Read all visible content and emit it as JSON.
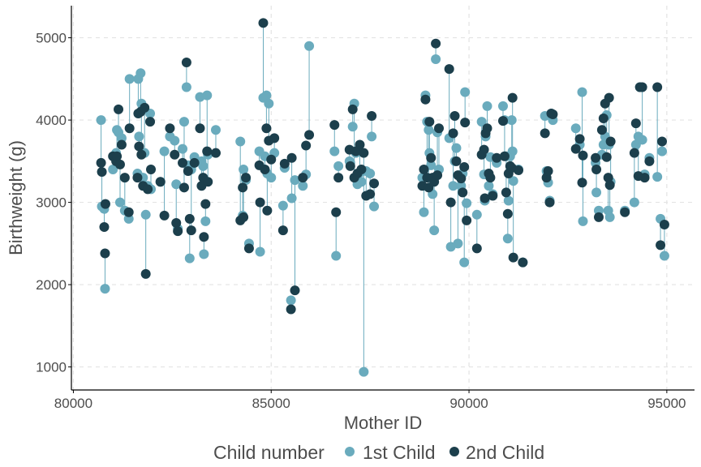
{
  "chart_data": {
    "type": "scatter",
    "xlabel": "Mother ID",
    "ylabel": "Birthweight (g)",
    "xlim": [
      79950,
      95700
    ],
    "ylim": [
      720,
      5390
    ],
    "x_ticks": [
      "80000",
      "85000",
      "90000",
      "95000"
    ],
    "x_tick_values": [
      80000,
      85000,
      90000,
      95000
    ],
    "y_ticks": [
      "1000",
      "2000",
      "3000",
      "4000",
      "5000"
    ],
    "y_tick_values": [
      1000,
      2000,
      3000,
      4000,
      5000
    ],
    "grid": true,
    "legend": {
      "position": "bottom",
      "title": "Child number",
      "entries": [
        "1st Child",
        "2nd Child"
      ]
    },
    "colors": {
      "first": "#6aabbd",
      "second": "#1c3f4c",
      "line": "#6aabbd"
    },
    "pairs": [
      {
        "x": 80700,
        "first": 4000,
        "second": 3480
      },
      {
        "x": 80720,
        "first": 2950,
        "second": 3370
      },
      {
        "x": 80780,
        "first": 2920,
        "second": 2700
      },
      {
        "x": 80800,
        "first": 1950,
        "second": 2380
      },
      {
        "x": 80810,
        "first": 2980,
        "second": 2980
      },
      {
        "x": 81000,
        "first": 3400,
        "second": 3560
      },
      {
        "x": 81080,
        "first": 3600,
        "second": 3500
      },
      {
        "x": 81100,
        "first": 3880,
        "second": 3560
      },
      {
        "x": 81140,
        "first": 3850,
        "second": 4130
      },
      {
        "x": 81180,
        "first": 3000,
        "second": 3460
      },
      {
        "x": 81220,
        "first": 3780,
        "second": 3700
      },
      {
        "x": 81300,
        "first": 2900,
        "second": 3300
      },
      {
        "x": 81400,
        "first": 2800,
        "second": 2880
      },
      {
        "x": 81420,
        "first": 4500,
        "second": 3900
      },
      {
        "x": 81620,
        "first": 3350,
        "second": 3300
      },
      {
        "x": 81640,
        "first": 4500,
        "second": 4080
      },
      {
        "x": 81660,
        "first": 3800,
        "second": 3680
      },
      {
        "x": 81700,
        "first": 4570,
        "second": 4100
      },
      {
        "x": 81720,
        "first": 4200,
        "second": 3580
      },
      {
        "x": 81760,
        "first": 3300,
        "second": 3200
      },
      {
        "x": 81800,
        "first": 3600,
        "second": 4150
      },
      {
        "x": 81830,
        "first": 2850,
        "second": 2130
      },
      {
        "x": 81880,
        "first": 3200,
        "second": 3160
      },
      {
        "x": 81940,
        "first": 4080,
        "second": 3980
      },
      {
        "x": 81960,
        "first": 3160,
        "second": 3400
      },
      {
        "x": 82200,
        "first": 3250,
        "second": 3250
      },
      {
        "x": 82300,
        "first": 3620,
        "second": 2840
      },
      {
        "x": 82440,
        "first": 3800,
        "second": 3900
      },
      {
        "x": 82560,
        "first": 3750,
        "second": 3580
      },
      {
        "x": 82600,
        "first": 3220,
        "second": 2750
      },
      {
        "x": 82640,
        "first": 2680,
        "second": 2650
      },
      {
        "x": 82760,
        "first": 3650,
        "second": 3480
      },
      {
        "x": 82800,
        "first": 3980,
        "second": 3180
      },
      {
        "x": 82860,
        "first": 4400,
        "second": 4700
      },
      {
        "x": 82900,
        "first": 3450,
        "second": 3380
      },
      {
        "x": 82940,
        "first": 2320,
        "second": 2800
      },
      {
        "x": 82980,
        "first": 3400,
        "second": 2660
      },
      {
        "x": 83060,
        "first": 3550,
        "second": 3480
      },
      {
        "x": 83200,
        "first": 4280,
        "second": 3900
      },
      {
        "x": 83240,
        "first": 3500,
        "second": 3200
      },
      {
        "x": 83280,
        "first": 3440,
        "second": 3300
      },
      {
        "x": 83300,
        "first": 2370,
        "second": 2580
      },
      {
        "x": 83340,
        "first": 2770,
        "second": 2980
      },
      {
        "x": 83380,
        "first": 4300,
        "second": 3620
      },
      {
        "x": 83400,
        "first": 3580,
        "second": 3250
      },
      {
        "x": 83600,
        "first": 3880,
        "second": 3600
      },
      {
        "x": 84220,
        "first": 3740,
        "second": 2780
      },
      {
        "x": 84280,
        "first": 2840,
        "second": 3180
      },
      {
        "x": 84300,
        "first": 3400,
        "second": 2820
      },
      {
        "x": 84360,
        "first": 3270,
        "second": 3300
      },
      {
        "x": 84440,
        "first": 2500,
        "second": 2440
      },
      {
        "x": 84700,
        "first": 3620,
        "second": 3450
      },
      {
        "x": 84720,
        "first": 2400,
        "second": 3000
      },
      {
        "x": 84800,
        "first": 4270,
        "second": 5180
      },
      {
        "x": 84840,
        "first": 3560,
        "second": 3400
      },
      {
        "x": 84880,
        "first": 4300,
        "second": 3900
      },
      {
        "x": 84900,
        "first": 3350,
        "second": 2900
      },
      {
        "x": 84940,
        "first": 4200,
        "second": 3750
      },
      {
        "x": 85000,
        "first": 3300,
        "second": 3520
      },
      {
        "x": 85080,
        "first": 3600,
        "second": 3780
      },
      {
        "x": 85300,
        "first": 2960,
        "second": 2660
      },
      {
        "x": 85340,
        "first": 3420,
        "second": 3470
      },
      {
        "x": 85500,
        "first": 1810,
        "second": 1700
      },
      {
        "x": 85520,
        "first": 3050,
        "second": 3540
      },
      {
        "x": 85600,
        "first": 3270,
        "second": 1930
      },
      {
        "x": 85800,
        "first": 3200,
        "second": 3300
      },
      {
        "x": 85880,
        "first": 3340,
        "second": 3690
      },
      {
        "x": 85960,
        "first": 4900,
        "second": 3820
      },
      {
        "x": 86600,
        "first": 3620,
        "second": 3940
      },
      {
        "x": 86640,
        "first": 2350,
        "second": 2880
      },
      {
        "x": 86700,
        "first": 3440,
        "second": 3300
      },
      {
        "x": 86980,
        "first": 3500,
        "second": 3640
      },
      {
        "x": 87000,
        "first": 3480,
        "second": 3440
      },
      {
        "x": 87060,
        "first": 3920,
        "second": 4130
      },
      {
        "x": 87100,
        "first": 4200,
        "second": 3300
      },
      {
        "x": 87140,
        "first": 3600,
        "second": 3620
      },
      {
        "x": 87180,
        "first": 3220,
        "second": 3350
      },
      {
        "x": 87240,
        "first": 3360,
        "second": 3700
      },
      {
        "x": 87280,
        "first": 3250,
        "second": 3400
      },
      {
        "x": 87340,
        "first": 940,
        "second": 3600
      },
      {
        "x": 87400,
        "first": 3380,
        "second": 3080
      },
      {
        "x": 87500,
        "first": 3350,
        "second": 3100
      },
      {
        "x": 87540,
        "first": 3800,
        "second": 4050
      },
      {
        "x": 87600,
        "first": 2950,
        "second": 3230
      },
      {
        "x": 88820,
        "first": 3300,
        "second": 3200
      },
      {
        "x": 88860,
        "first": 2880,
        "second": 3400
      },
      {
        "x": 88900,
        "first": 4300,
        "second": 4250
      },
      {
        "x": 88940,
        "first": 3980,
        "second": 3300
      },
      {
        "x": 88980,
        "first": 3880,
        "second": 3180
      },
      {
        "x": 89000,
        "first": 3600,
        "second": 3980
      },
      {
        "x": 89040,
        "first": 3450,
        "second": 3540
      },
      {
        "x": 89080,
        "first": 3100,
        "second": 3300
      },
      {
        "x": 89120,
        "first": 2660,
        "second": 3250
      },
      {
        "x": 89160,
        "first": 4740,
        "second": 4930
      },
      {
        "x": 89200,
        "first": 3850,
        "second": 3330
      },
      {
        "x": 89240,
        "first": 3400,
        "second": 3900
      },
      {
        "x": 89500,
        "first": 3780,
        "second": 4620
      },
      {
        "x": 89540,
        "first": 2460,
        "second": 3000
      },
      {
        "x": 89600,
        "first": 3200,
        "second": 3840
      },
      {
        "x": 89640,
        "first": 3500,
        "second": 4050
      },
      {
        "x": 89680,
        "first": 3660,
        "second": 3500
      },
      {
        "x": 89720,
        "first": 2500,
        "second": 3330
      },
      {
        "x": 89800,
        "first": 3200,
        "second": 3290
      },
      {
        "x": 89840,
        "first": 3350,
        "second": 3120
      },
      {
        "x": 89880,
        "first": 2270,
        "second": 3430
      },
      {
        "x": 89900,
        "first": 4340,
        "second": 3970
      },
      {
        "x": 89940,
        "first": 2990,
        "second": 2780
      },
      {
        "x": 90200,
        "first": 2850,
        "second": 2440
      },
      {
        "x": 90320,
        "first": 3980,
        "second": 3580
      },
      {
        "x": 90380,
        "first": 3340,
        "second": 3640
      },
      {
        "x": 90400,
        "first": 3020,
        "second": 3050
      },
      {
        "x": 90420,
        "first": 3800,
        "second": 3840
      },
      {
        "x": 90460,
        "first": 4170,
        "second": 3900
      },
      {
        "x": 90500,
        "first": 3200,
        "second": 3350
      },
      {
        "x": 90540,
        "first": 3550,
        "second": 3300
      },
      {
        "x": 90600,
        "first": 3100,
        "second": 3080
      },
      {
        "x": 90700,
        "first": 3480,
        "second": 3540
      },
      {
        "x": 90860,
        "first": 4170,
        "second": 3990
      },
      {
        "x": 90900,
        "first": 4000,
        "second": 3560
      },
      {
        "x": 90940,
        "first": 3560,
        "second": 3120
      },
      {
        "x": 90980,
        "first": 2560,
        "second": 2860
      },
      {
        "x": 91000,
        "first": 3020,
        "second": 3350
      },
      {
        "x": 91040,
        "first": 3560,
        "second": 3440
      },
      {
        "x": 91080,
        "first": 4000,
        "second": 3420
      },
      {
        "x": 91100,
        "first": 3620,
        "second": 4270
      },
      {
        "x": 91120,
        "first": 3260,
        "second": 2330
      },
      {
        "x": 91250,
        "first": 3400,
        "second": 3390
      },
      {
        "x": 91360,
        "first": 2270,
        "second": 2270
      },
      {
        "x": 91920,
        "first": 4050,
        "second": 3840
      },
      {
        "x": 91960,
        "first": 3380,
        "second": 3300
      },
      {
        "x": 92000,
        "first": 3240,
        "second": 3380
      },
      {
        "x": 92040,
        "first": 3020,
        "second": 3000
      },
      {
        "x": 92080,
        "first": 4080,
        "second": 4080
      },
      {
        "x": 92120,
        "first": 4000,
        "second": 4070
      },
      {
        "x": 92700,
        "first": 3900,
        "second": 3650
      },
      {
        "x": 92800,
        "first": 3700,
        "second": 3770
      },
      {
        "x": 92860,
        "first": 4340,
        "second": 3240
      },
      {
        "x": 92880,
        "first": 2770,
        "second": 3570
      },
      {
        "x": 93200,
        "first": 3480,
        "second": 3540
      },
      {
        "x": 93220,
        "first": 3120,
        "second": 3400
      },
      {
        "x": 93280,
        "first": 2900,
        "second": 2820
      },
      {
        "x": 93360,
        "first": 3580,
        "second": 3880
      },
      {
        "x": 93400,
        "first": 3700,
        "second": 4020
      },
      {
        "x": 93440,
        "first": 3800,
        "second": 4200
      },
      {
        "x": 93480,
        "first": 4060,
        "second": 3550
      },
      {
        "x": 93520,
        "first": 2900,
        "second": 3300
      },
      {
        "x": 93540,
        "first": 3700,
        "second": 4270
      },
      {
        "x": 93560,
        "first": 2820,
        "second": 3210
      },
      {
        "x": 93580,
        "first": 3250,
        "second": 3740
      },
      {
        "x": 93940,
        "first": 2900,
        "second": 2880
      },
      {
        "x": 94180,
        "first": 3000,
        "second": 3600
      },
      {
        "x": 94220,
        "first": 3700,
        "second": 3960
      },
      {
        "x": 94280,
        "first": 3800,
        "second": 3320
      },
      {
        "x": 94320,
        "first": 4400,
        "second": 4400
      },
      {
        "x": 94380,
        "first": 3760,
        "second": 4400
      },
      {
        "x": 94440,
        "first": 3340,
        "second": 3300
      },
      {
        "x": 94560,
        "first": 3540,
        "second": 3500
      },
      {
        "x": 94760,
        "first": 3310,
        "second": 4400
      },
      {
        "x": 94840,
        "first": 2800,
        "second": 2480
      },
      {
        "x": 94880,
        "first": 3620,
        "second": 3740
      },
      {
        "x": 94940,
        "first": 2350,
        "second": 2730
      }
    ]
  }
}
